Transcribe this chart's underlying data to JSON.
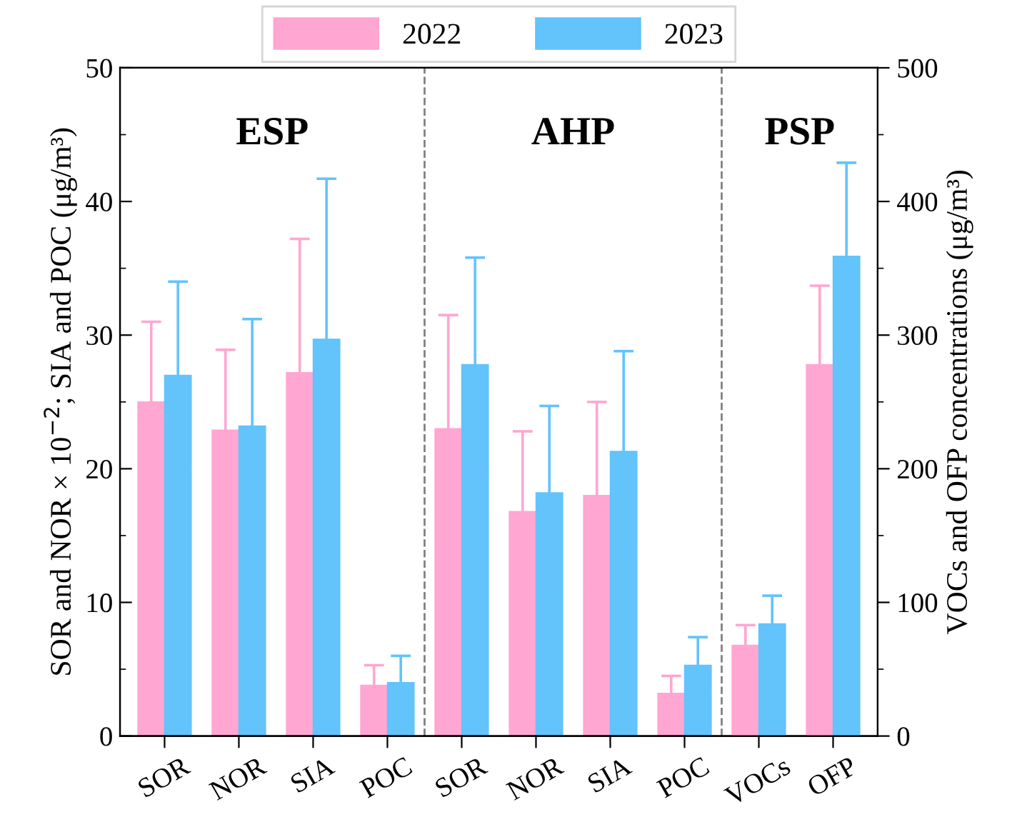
{
  "chart_data": {
    "type": "bar",
    "categories": [
      "SOR",
      "NOR",
      "SIA",
      "POC",
      "SOR",
      "NOR",
      "SIA",
      "POC",
      "VOCs",
      "OFP"
    ],
    "ylabel": "SOR and NOR × 10$^{−2}$; SIA and POC (μg/m³)",
    "y2label": "VOCs and OFP concentrations (μg/m³)",
    "series": [
      {
        "name": "2022",
        "color": "#ffa6d2",
        "values": [
          25.0,
          22.9,
          27.2,
          3.8,
          23.0,
          16.8,
          18.0,
          3.2,
          null,
          null
        ],
        "errors": [
          6.0,
          6.0,
          10.0,
          1.5,
          8.5,
          6.0,
          7.0,
          1.3,
          null,
          null
        ]
      },
      {
        "name": "2023",
        "color": "#63c3fb",
        "values": [
          27.0,
          23.2,
          29.7,
          4.0,
          27.8,
          18.2,
          21.3,
          5.3,
          null,
          null
        ],
        "errors": [
          7.0,
          8.0,
          12.0,
          2.0,
          8.0,
          6.5,
          7.5,
          2.1,
          null,
          null
        ]
      },
      {
        "color": "#ffa6d2",
        "axis": "y2",
        "values": [
          null,
          null,
          null,
          null,
          null,
          null,
          null,
          null,
          68,
          278
        ],
        "errors": [
          null,
          null,
          null,
          null,
          null,
          null,
          null,
          null,
          15,
          59
        ]
      },
      {
        "color": "#63c3fb",
        "axis": "y2",
        "values": [
          null,
          null,
          null,
          null,
          null,
          null,
          null,
          null,
          84,
          359
        ],
        "errors": [
          null,
          null,
          null,
          null,
          null,
          null,
          null,
          null,
          21,
          70
        ]
      }
    ],
    "ylim": [
      0,
      50
    ],
    "yticks": [
      0,
      10,
      20,
      30,
      40,
      50
    ],
    "y2lim": [
      0,
      500
    ],
    "y2ticks": [
      0,
      100,
      200,
      300,
      400,
      500
    ],
    "annotations": [
      "ESP",
      "AHP",
      "PSP"
    ],
    "legend": "top",
    "grid": false
  }
}
